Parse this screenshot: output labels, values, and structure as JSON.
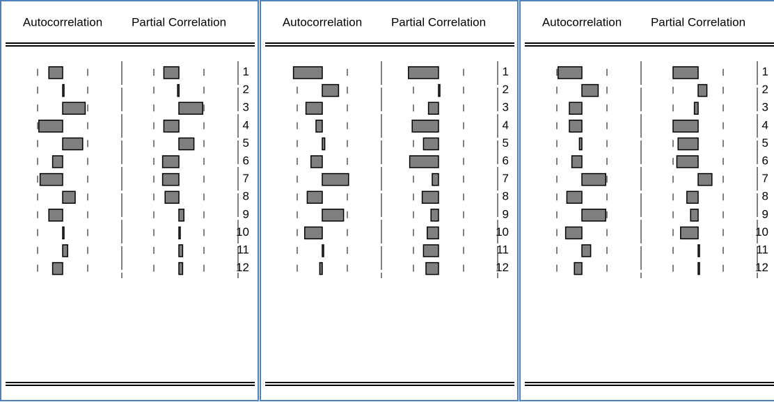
{
  "chart_data": [
    {
      "type": "correlogram",
      "color": "#808080",
      "categories": [
        1,
        2,
        3,
        4,
        5,
        6,
        7,
        8,
        9,
        10,
        11,
        12
      ],
      "series": [
        {
          "name": "Autocorrelation",
          "values": [
            -0.11,
            0.01,
            0.18,
            -0.19,
            0.16,
            -0.08,
            -0.18,
            0.1,
            -0.11,
            0.01,
            0.04,
            -0.08
          ]
        },
        {
          "name": "Partial Correlation",
          "values": [
            -0.12,
            -0.01,
            0.19,
            -0.12,
            0.12,
            -0.13,
            -0.13,
            -0.11,
            0.04,
            0.01,
            0.03,
            0.03
          ]
        }
      ]
    },
    {
      "type": "correlogram",
      "color": "#808080",
      "categories": [
        1,
        2,
        3,
        4,
        5,
        6,
        7,
        8,
        9,
        10,
        11,
        12
      ],
      "series": [
        {
          "name": "Autocorrelation",
          "values": [
            -0.23,
            0.13,
            -0.13,
            -0.05,
            0.02,
            -0.09,
            0.21,
            -0.12,
            0.17,
            -0.14,
            0.01,
            -0.02
          ]
        },
        {
          "name": "Partial Correlation",
          "values": [
            -0.24,
            0.01,
            -0.08,
            -0.21,
            -0.12,
            -0.23,
            -0.05,
            -0.13,
            -0.06,
            -0.09,
            -0.12,
            -0.1
          ]
        }
      ]
    },
    {
      "type": "correlogram",
      "color": "#808080",
      "categories": [
        1,
        2,
        3,
        4,
        5,
        6,
        7,
        8,
        9,
        10,
        11,
        12
      ],
      "series": [
        {
          "name": "Autocorrelation",
          "values": [
            -0.19,
            0.13,
            -0.1,
            -0.1,
            -0.02,
            -0.08,
            0.19,
            -0.12,
            0.19,
            -0.13,
            0.07,
            -0.06
          ]
        },
        {
          "name": "Partial Correlation",
          "values": [
            -0.2,
            0.07,
            -0.03,
            -0.2,
            -0.16,
            -0.17,
            0.11,
            -0.09,
            -0.06,
            -0.14,
            0.01,
            0.01
          ]
        }
      ]
    }
  ]
}
